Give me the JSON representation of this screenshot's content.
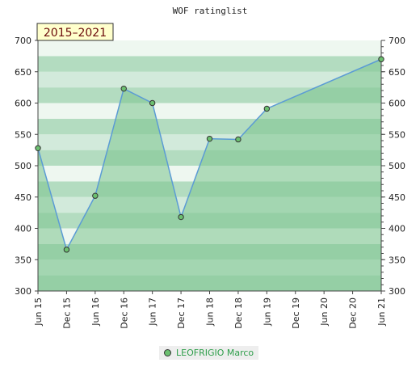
{
  "chart_data": {
    "type": "area",
    "title": "WOF ratinglist",
    "period_label": "2015–2021",
    "categories": [
      "Jun 15",
      "Dec 15",
      "Jun 16",
      "Dec 16",
      "Jun 17",
      "Dec 17",
      "Jun 18",
      "Dec 18",
      "Jun 19",
      "Dec 19",
      "Jun 20",
      "Dec 20",
      "Jun 21"
    ],
    "series": [
      {
        "name": "LEOFRIGIO Marco",
        "points": [
          {
            "x": "Jun 15",
            "y": 528
          },
          {
            "x": "Dec 15",
            "y": 366
          },
          {
            "x": "Jun 16",
            "y": 452
          },
          {
            "x": "Dec 16",
            "y": 623
          },
          {
            "x": "Jun 17",
            "y": 600
          },
          {
            "x": "Dec 17",
            "y": 418
          },
          {
            "x": "Jun 18",
            "y": 543
          },
          {
            "x": "Dec 18",
            "y": 542
          },
          {
            "x": "Jun 19",
            "y": 591
          },
          {
            "x": "Jun 21",
            "y": 670
          }
        ]
      }
    ],
    "ylim": [
      300,
      700
    ],
    "yticks": [
      300,
      350,
      400,
      450,
      500,
      550,
      600,
      650,
      700
    ],
    "grid": true,
    "legend_position": "bottom-center",
    "colors": {
      "line": "#5b9bd5",
      "area": "#7cc48e",
      "marker": "#6cc070",
      "legend_text": "#2e9e4a",
      "badge_bg": "#ffffcc",
      "badge_text": "#6b0a0a",
      "band_dark": "#b3dcc0",
      "band_light": "#eef7f0"
    }
  }
}
